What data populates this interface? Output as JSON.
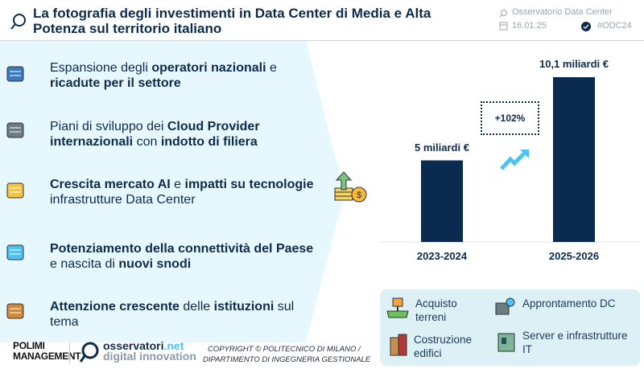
{
  "header": {
    "title": "La fotografia degli investimenti in Data Center di Media e Alta Potenza sul territorio italiano",
    "observatory": "Osservatorio Data Center",
    "date": "16.01.25",
    "hashtag": "#ODC24"
  },
  "drivers": [
    {
      "icon": "server-rack-icon",
      "segments": [
        {
          "t": "Espansione degli ",
          "b": false
        },
        {
          "t": "operatori nazionali",
          "b": true
        },
        {
          "t": " e ",
          "b": false
        },
        {
          "t": "ricadute per il settore",
          "b": true
        }
      ]
    },
    {
      "icon": "cloud-servers-icon",
      "segments": [
        {
          "t": "Piani di sviluppo dei ",
          "b": false
        },
        {
          "t": "Cloud Provider internazionali",
          "b": true
        },
        {
          "t": " con ",
          "b": false
        },
        {
          "t": "indotto di filiera",
          "b": true
        }
      ]
    },
    {
      "icon": "ai-lightbulb-icon",
      "segments": [
        {
          "t": "Crescita mercato AI",
          "b": true
        },
        {
          "t": " e ",
          "b": false
        },
        {
          "t": "impatti su tecnologie",
          "b": true
        },
        {
          "t": " infrastrutture Data Center",
          "b": false
        }
      ]
    },
    {
      "icon": "cloud-network-icon",
      "segments": [
        {
          "t": "Potenziamento della connettività del Paese",
          "b": true
        },
        {
          "t": " e nascita di ",
          "b": false
        },
        {
          "t": "nuovi snodi",
          "b": true
        }
      ]
    },
    {
      "icon": "certificate-stamp-icon",
      "segments": [
        {
          "t": "Attenzione crescente",
          "b": true
        },
        {
          "t": " delle ",
          "b": false
        },
        {
          "t": "istituzioni",
          "b": true
        },
        {
          "t": " sul tema",
          "b": false
        }
      ]
    }
  ],
  "chart_data": {
    "type": "bar",
    "categories": [
      "2023-2024",
      "2025-2026"
    ],
    "values": [
      5,
      10.1
    ],
    "data_labels": [
      "5 miliardi €",
      "10,1 miliardi €"
    ],
    "annotation": "+102%",
    "bar_color": "#0b2a4f",
    "grid": false,
    "ylim": [
      0,
      10.1
    ]
  },
  "legend": {
    "items": [
      "Acquisto terreni",
      "Approntamento DC",
      "Costruzione edifici",
      "Server e infrastrutture IT"
    ]
  },
  "footer": {
    "polimi_logo": "POLIMI GRADUATE SCHOOL OF MANAGEMENT",
    "osservatori_logo": "osservatori.net digital innovation",
    "copyright_line1": "COPYRIGHT © POLITECNICO DI MILANO /",
    "copyright_line2": "DIPARTIMENTO DI INGEGNERIA GESTIONALE"
  },
  "colors": {
    "navy": "#0d2b4a",
    "panel": "#e6f7fd",
    "legend_bg": "#dcf0f6",
    "accent": "#4cc3f0"
  }
}
